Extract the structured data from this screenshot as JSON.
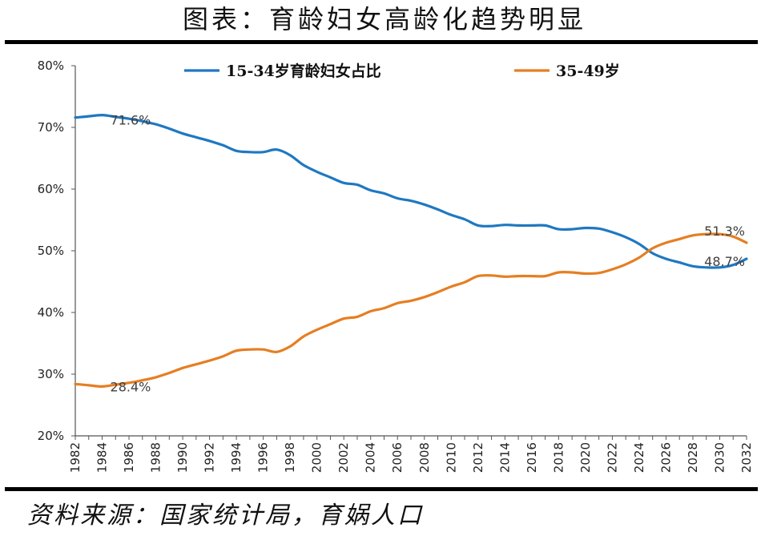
{
  "header": {
    "title": "图表：育龄妇女高龄化趋势明显"
  },
  "footer": {
    "source": "资料来源：国家统计局，育娲人口"
  },
  "chart_data": {
    "type": "line",
    "xlabel": "",
    "ylabel": "",
    "x": [
      1982,
      1983,
      1984,
      1985,
      1986,
      1987,
      1988,
      1989,
      1990,
      1991,
      1992,
      1993,
      1994,
      1995,
      1996,
      1997,
      1998,
      1999,
      2000,
      2001,
      2002,
      2003,
      2004,
      2005,
      2006,
      2007,
      2008,
      2009,
      2010,
      2011,
      2012,
      2013,
      2014,
      2015,
      2016,
      2017,
      2018,
      2019,
      2020,
      2021,
      2022,
      2023,
      2024,
      2025,
      2026,
      2027,
      2028,
      2029,
      2030,
      2031,
      2032
    ],
    "xticks": [
      "1982",
      "1984",
      "1986",
      "1988",
      "1990",
      "1992",
      "1994",
      "1996",
      "1998",
      "2000",
      "2002",
      "2004",
      "2006",
      "2008",
      "2010",
      "2012",
      "2014",
      "2016",
      "2018",
      "2020",
      "2022",
      "2024",
      "2026",
      "2028",
      "2030",
      "2032"
    ],
    "ylim": [
      20,
      80
    ],
    "yticks": [
      "20%",
      "30%",
      "40%",
      "50%",
      "60%",
      "70%",
      "80%"
    ],
    "legend_position": "top",
    "grid": false,
    "series": [
      {
        "name": "15-34岁育龄妇女占比",
        "color": "#1f78c1",
        "values": [
          71.6,
          71.8,
          72.0,
          71.7,
          71.4,
          71.0,
          70.5,
          69.8,
          69.0,
          68.4,
          67.8,
          67.1,
          66.2,
          66.0,
          66.0,
          66.4,
          65.5,
          63.9,
          62.8,
          61.9,
          61.0,
          60.7,
          59.8,
          59.3,
          58.5,
          58.1,
          57.5,
          56.7,
          55.8,
          55.1,
          54.1,
          54.0,
          54.2,
          54.1,
          54.1,
          54.1,
          53.5,
          53.5,
          53.7,
          53.6,
          53.0,
          52.2,
          51.1,
          49.6,
          48.7,
          48.1,
          47.5,
          47.3,
          47.3,
          47.7,
          48.7
        ]
      },
      {
        "name": "35-49岁",
        "color": "#e67e22",
        "values": [
          28.4,
          28.2,
          28.0,
          28.3,
          28.6,
          29.0,
          29.5,
          30.2,
          31.0,
          31.6,
          32.2,
          32.9,
          33.8,
          34.0,
          34.0,
          33.6,
          34.5,
          36.1,
          37.2,
          38.1,
          39.0,
          39.3,
          40.2,
          40.7,
          41.5,
          41.9,
          42.5,
          43.3,
          44.2,
          44.9,
          45.9,
          46.0,
          45.8,
          45.9,
          45.9,
          45.9,
          46.5,
          46.5,
          46.3,
          46.4,
          47.0,
          47.8,
          48.9,
          50.4,
          51.3,
          51.9,
          52.5,
          52.7,
          52.7,
          52.3,
          51.3
        ]
      }
    ],
    "annotations": [
      {
        "text": "71.6%",
        "x": 1984,
        "y": 71.6,
        "series": 0
      },
      {
        "text": "28.4%",
        "x": 1984,
        "y": 28.4,
        "series": 1
      },
      {
        "text": "51.3%",
        "x": 2032,
        "y": 51.3,
        "series": 1
      },
      {
        "text": "48.7%",
        "x": 2032,
        "y": 48.7,
        "series": 0
      }
    ]
  }
}
